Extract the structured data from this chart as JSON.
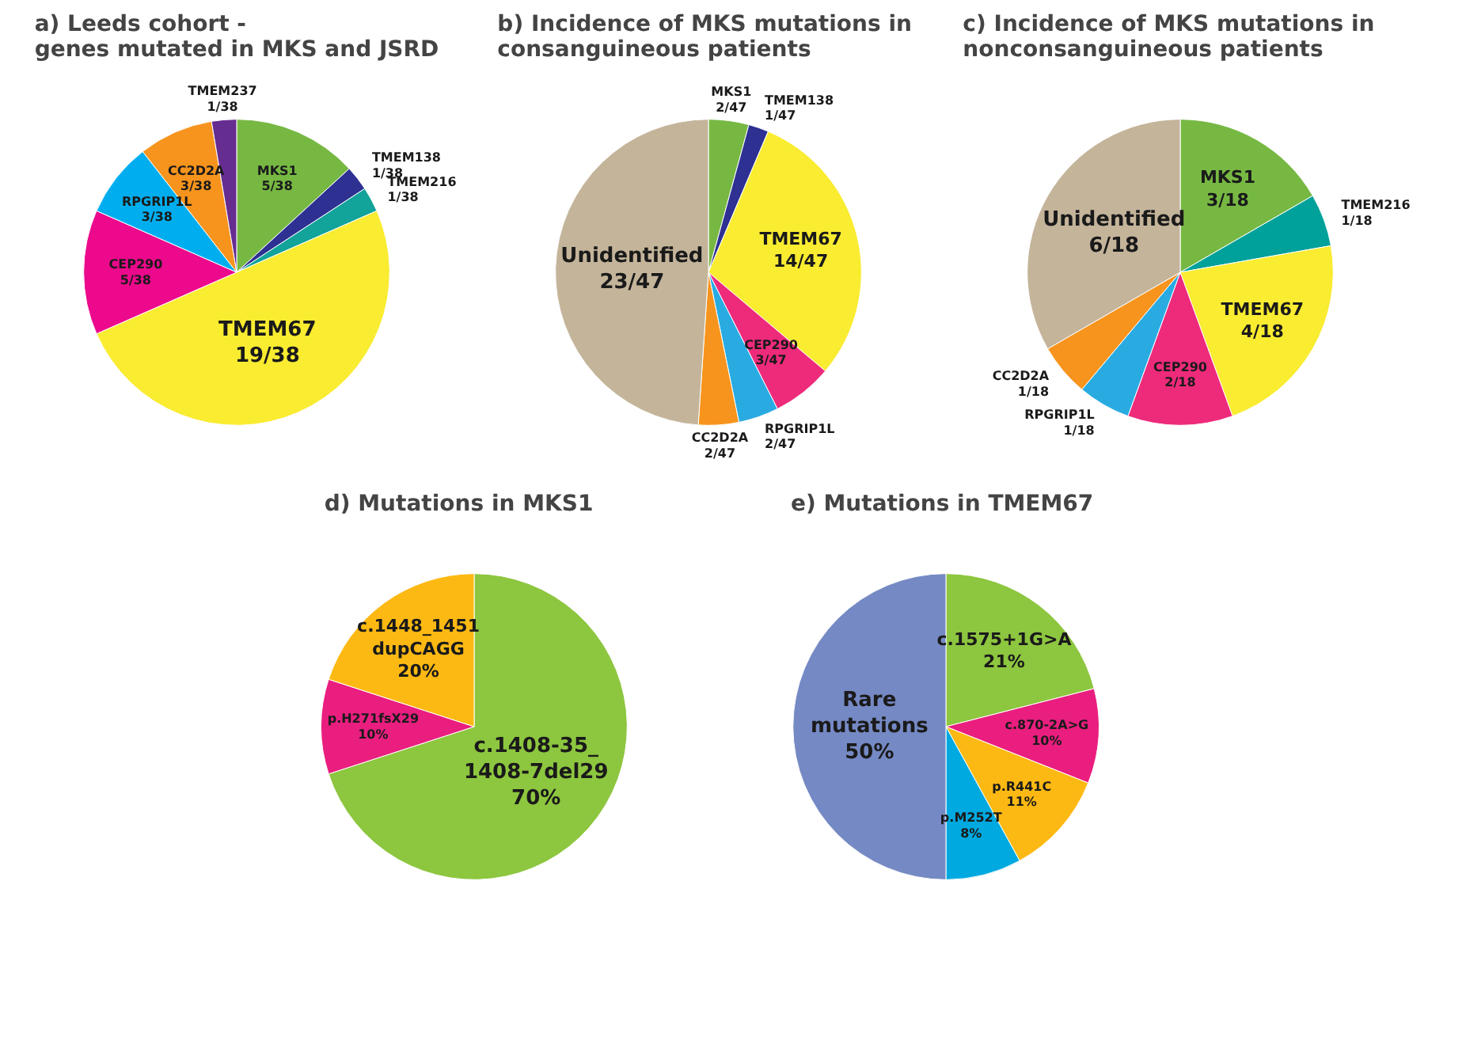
{
  "chart_data": [
    {
      "type": "pie",
      "title": "a)        Leeds cohort -\ngenes mutated in MKS and JSRD",
      "categories": [
        "MKS1",
        "TMEM138",
        "TMEM216",
        "TMEM67",
        "CEP290",
        "RPGRIP1L",
        "CC2D2A",
        "TMEM237"
      ],
      "values": [
        5,
        1,
        1,
        19,
        5,
        3,
        3,
        1
      ],
      "value_labels": [
        "5/38",
        "1/38",
        "1/38",
        "19/38",
        "5/38",
        "3/38",
        "3/38",
        "1/38"
      ],
      "colors": [
        "#77b843",
        "#2e3192",
        "#12a39a",
        "#f9ec31",
        "#ec098c",
        "#00aeef",
        "#f7941d",
        "#662d91"
      ]
    },
    {
      "type": "pie",
      "title": "b)  Incidence of MKS mutations in\nconsanguineous patients",
      "categories": [
        "MKS1",
        "TMEM138",
        "TMEM67",
        "CEP290",
        "RPGRIP1L",
        "CC2D2A",
        "Unidentified"
      ],
      "values": [
        2,
        1,
        14,
        3,
        2,
        2,
        23
      ],
      "value_labels": [
        "2/47",
        "1/47",
        "14/47",
        "3/47",
        "2/47",
        "2/47",
        "23/47"
      ],
      "colors": [
        "#77b843",
        "#2e3192",
        "#f9ec31",
        "#ee2a7b",
        "#29abe2",
        "#f7941d",
        "#c4b49a"
      ]
    },
    {
      "type": "pie",
      "title": "c)    Incidence of MKS mutations in\nnonconsanguineous patients",
      "categories": [
        "MKS1",
        "TMEM216",
        "TMEM67",
        "CEP290",
        "RPGRIP1L",
        "CC2D2A",
        "Unidentified"
      ],
      "values": [
        3,
        1,
        4,
        2,
        1,
        1,
        6
      ],
      "value_labels": [
        "3/18",
        "1/18",
        "4/18",
        "2/18",
        "1/18",
        "1/18",
        "6/18"
      ],
      "colors": [
        "#77b843",
        "#00a19a",
        "#f9ec31",
        "#ee2a7b",
        "#29abe2",
        "#f7941d",
        "#c4b49a"
      ]
    },
    {
      "type": "pie",
      "title": "d)     Mutations in MKS1",
      "categories": [
        "c.1408-35_\n1408-7del29",
        "p.H271fsX29",
        "c.1448_1451\ndupCAGG"
      ],
      "values": [
        70,
        10,
        20
      ],
      "value_labels": [
        "70%",
        "10%",
        "20%"
      ],
      "colors": [
        "#8dc63f",
        "#e91e7f",
        "#fdb913"
      ]
    },
    {
      "type": "pie",
      "title": "e)  Mutations in TMEM67",
      "categories": [
        "c.1575+1G>A",
        "c.870-2A>G",
        "p.R441C",
        "p.M252T",
        "Rare\nmutations"
      ],
      "values": [
        21,
        10,
        11,
        8,
        50
      ],
      "value_labels": [
        "21%",
        "10%",
        "11%",
        "8%",
        "50%"
      ],
      "colors": [
        "#8dc63f",
        "#e91e7f",
        "#fdb913",
        "#00a9e0",
        "#7589c4"
      ]
    }
  ]
}
